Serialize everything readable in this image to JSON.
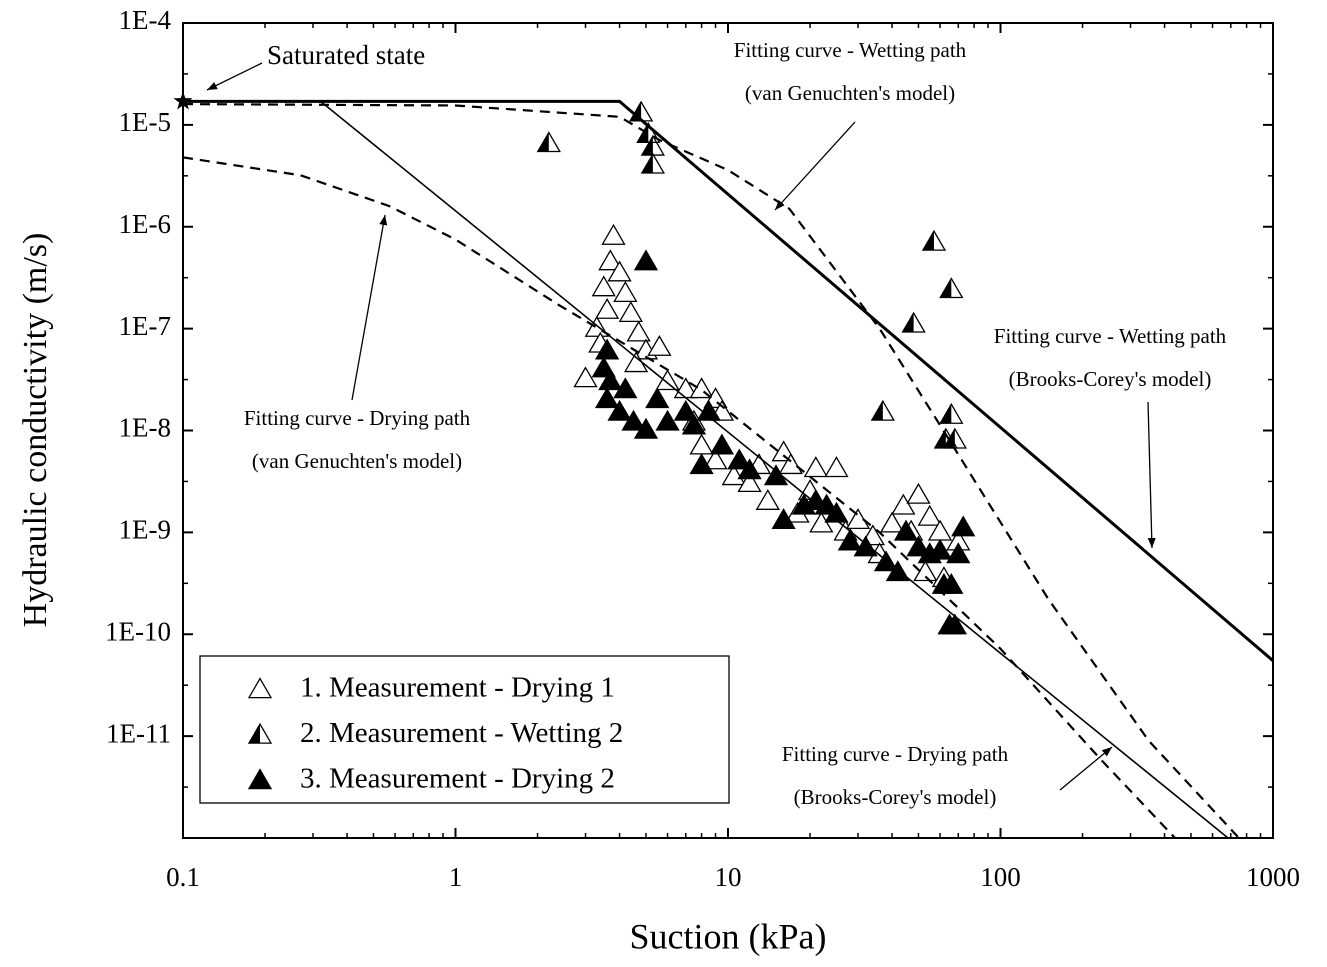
{
  "chart_data": {
    "type": "scatter",
    "x_label": "Suction (kPa)",
    "y_label": "Hydraulic conductivity (m/s)",
    "xlog": true,
    "ylog": true,
    "xlim": [
      0.1,
      1000
    ],
    "ylim": [
      1e-12,
      0.0001
    ],
    "xticks": [
      0.1,
      1,
      10,
      100,
      1000
    ],
    "yticks": [
      {
        "value": 0.0001,
        "label": "1E-4"
      },
      {
        "value": 1e-05,
        "label": "1E-5"
      },
      {
        "value": 1e-06,
        "label": "1E-6"
      },
      {
        "value": 1e-07,
        "label": "1E-7"
      },
      {
        "value": 1e-08,
        "label": "1E-8"
      },
      {
        "value": 1e-09,
        "label": "1E-9"
      },
      {
        "value": 1e-10,
        "label": "1E-10"
      },
      {
        "value": 1e-11,
        "label": "1E-11"
      }
    ],
    "legend": "lower left",
    "series": [
      {
        "name": "1. Measurement - Drying 1",
        "type": "scatter",
        "marker": "open",
        "color": "#000000",
        "x": [
          3.8,
          3.7,
          4.0,
          3.5,
          4.2,
          3.6,
          4.4,
          3.3,
          3.0,
          3.4,
          4.7,
          5.0,
          5.6,
          4.6,
          6.0,
          7.0,
          8.0,
          9.0,
          9.5,
          7.5,
          8.0,
          9,
          10.5,
          12,
          13,
          16,
          17,
          20,
          21,
          25,
          14,
          18,
          22,
          27,
          30,
          34,
          36,
          40,
          44,
          50,
          47,
          55,
          60,
          53,
          62,
          70
        ],
        "values": [
          8e-07,
          4.5e-07,
          3.5e-07,
          2.5e-07,
          2.2e-07,
          1.5e-07,
          1.4e-07,
          1e-07,
          3.2e-08,
          7e-08,
          9e-08,
          6e-08,
          6.5e-08,
          4.5e-08,
          3e-08,
          2.5e-08,
          2.5e-08,
          2e-08,
          1.5e-08,
          1.2e-08,
          7e-09,
          5e-09,
          3.5e-09,
          3e-09,
          4.5e-09,
          6e-09,
          4.5e-09,
          2.5e-09,
          4.2e-09,
          4.2e-09,
          2e-09,
          1.5e-09,
          1.2e-09,
          1e-09,
          1.3e-09,
          9e-10,
          6e-10,
          1.2e-09,
          1.8e-09,
          2.3e-09,
          1e-09,
          1.4e-09,
          1e-09,
          4e-10,
          3.5e-10,
          8e-10
        ]
      },
      {
        "name": "2. Measurement - Wetting 2",
        "type": "scatter",
        "marker": "half",
        "color": "#000000",
        "x": [
          2.2,
          4.8,
          5.1,
          5.3,
          5.3,
          48,
          37,
          57,
          66,
          66,
          63,
          68
        ],
        "values": [
          6.5e-06,
          1.3e-05,
          8e-06,
          6e-06,
          4e-06,
          1.1e-07,
          1.5e-08,
          7e-07,
          2.4e-07,
          1.4e-08,
          8e-09,
          8e-09
        ]
      },
      {
        "name": "3. Measurement - Drying 2",
        "type": "scatter",
        "marker": "filled",
        "color": "#000000",
        "x": [
          5,
          3.6,
          3.5,
          3.7,
          3.6,
          4,
          4.2,
          4.5,
          5,
          5.5,
          6,
          7,
          7.5,
          8.5,
          9.5,
          8,
          11,
          12,
          15,
          16,
          19,
          21,
          23,
          25,
          28,
          32,
          38,
          42,
          45,
          50,
          55,
          60,
          62,
          66,
          70,
          73,
          68,
          65
        ],
        "values": [
          4.5e-07,
          6e-08,
          4e-08,
          3e-08,
          2e-08,
          1.5e-08,
          2.5e-08,
          1.2e-08,
          1e-08,
          2e-08,
          1.2e-08,
          1.5e-08,
          1.1e-08,
          1.5e-08,
          7e-09,
          4.5e-09,
          5e-09,
          4e-09,
          3.5e-09,
          1.3e-09,
          1.8e-09,
          2e-09,
          1.8e-09,
          1.5e-09,
          8e-10,
          7e-10,
          5e-10,
          4e-10,
          1e-09,
          7e-10,
          6e-10,
          6.5e-10,
          3e-10,
          3e-10,
          6e-10,
          1.1e-09,
          1.2e-10,
          1.2e-10
        ]
      },
      {
        "type": "line",
        "style": "solid",
        "width": 3,
        "color": "#000000",
        "x": [
          0.1,
          4,
          1000
        ],
        "values": [
          1.7e-05,
          1.7e-05,
          5.5e-11
        ]
      },
      {
        "type": "line",
        "style": "solid",
        "width": 1.6,
        "color": "#000000",
        "x": [
          0.1,
          0.32,
          684
        ],
        "values": [
          1.7e-05,
          1.7e-05,
          1e-12
        ]
      },
      {
        "type": "line",
        "style": "dashed",
        "width": 2.2,
        "color": "#000000",
        "x": [
          0.1,
          1,
          4,
          5.6,
          10,
          16.8,
          36,
          65,
          150,
          350,
          750
        ],
        "values": [
          1.6e-05,
          1.55e-05,
          1.2e-05,
          7.1e-06,
          3.6e-06,
          1.5e-06,
          1e-07,
          8e-09,
          2.2e-10,
          9e-12,
          1e-12
        ]
      },
      {
        "type": "line",
        "style": "dashed",
        "width": 2.2,
        "color": "#000000",
        "x": [
          0.1,
          0.27,
          0.57,
          1,
          2.4,
          8,
          36,
          100,
          232,
          437
        ],
        "values": [
          4.8e-06,
          3.2e-06,
          1.6e-06,
          7.5e-07,
          1.7e-07,
          2.5e-08,
          1e-09,
          7.2e-11,
          6e-12,
          1e-12
        ]
      }
    ],
    "annotations": [
      {
        "text": "Saturated state",
        "x": 0.1,
        "y": 1.7e-05
      },
      {
        "lines": [
          "Fitting curve - Wetting path",
          "(van Genuchten's model)"
        ]
      },
      {
        "lines": [
          "Fitting curve - Wetting path",
          "(Brooks-Corey's model)"
        ]
      },
      {
        "lines": [
          "Fitting curve - Drying path",
          "(van Genuchten's model)"
        ]
      },
      {
        "lines": [
          "Fitting curve - Drying path",
          "(Brooks-Corey's model)"
        ]
      }
    ]
  }
}
